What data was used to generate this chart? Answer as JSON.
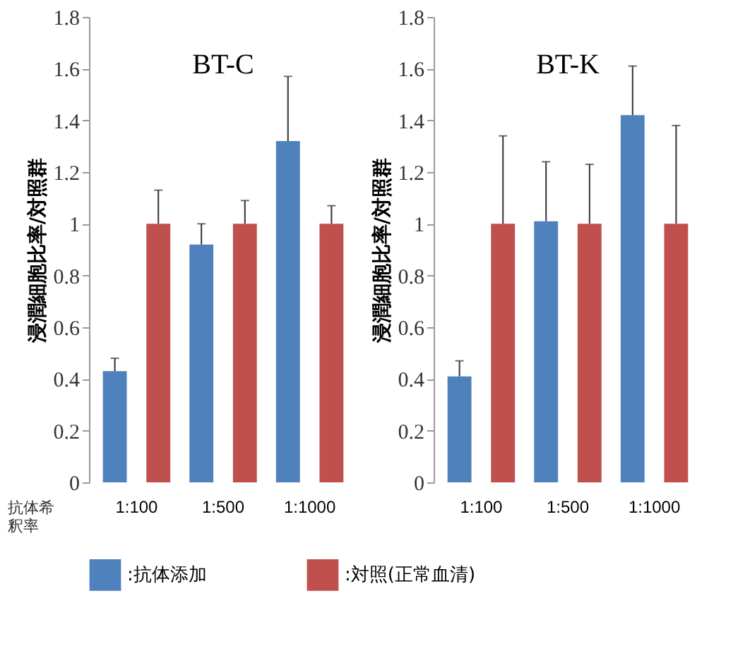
{
  "chart_data": [
    {
      "type": "bar",
      "title": "BT-C",
      "ylabel": "浸潤細胞比率/対照群",
      "xlabel": "抗体希釈率",
      "categories": [
        "1:100",
        "1:500",
        "1:1000"
      ],
      "ylim": [
        0,
        1.8
      ],
      "yticks": [
        0,
        0.2,
        0.4,
        0.6,
        0.8,
        1,
        1.2,
        1.4,
        1.6,
        1.8
      ],
      "grid": false,
      "legend": "bottom",
      "series": [
        {
          "name": ":抗体添加",
          "color": "#4f81bd",
          "values": [
            0.43,
            0.92,
            1.32
          ],
          "errors": [
            [
              0.43,
              0.48
            ],
            [
              0.92,
              1.0
            ],
            [
              1.32,
              1.57
            ]
          ]
        },
        {
          "name": ":対照(正常血清)",
          "color": "#c0504d",
          "values": [
            1.0,
            1.0,
            1.0
          ],
          "errors": [
            [
              1.0,
              1.13
            ],
            [
              1.0,
              1.09
            ],
            [
              1.0,
              1.07
            ]
          ]
        }
      ]
    },
    {
      "type": "bar",
      "title": "BT-K",
      "ylabel": "浸潤細胞比率/対照群",
      "categories": [
        "1:100",
        "1:500",
        "1:1000"
      ],
      "ylim": [
        0,
        1.8
      ],
      "yticks": [
        0,
        0.2,
        0.4,
        0.6,
        0.8,
        1,
        1.2,
        1.4,
        1.6,
        1.8
      ],
      "grid": false,
      "legend": "bottom",
      "series": [
        {
          "name": ":抗体添加",
          "color": "#4f81bd",
          "values": [
            0.41,
            1.01,
            1.42
          ],
          "errors": [
            [
              0.41,
              0.47
            ],
            [
              1.01,
              1.24
            ],
            [
              1.42,
              1.61
            ]
          ]
        },
        {
          "name": ":対照(正常血清)",
          "color": "#c0504d",
          "values": [
            1.0,
            1.0,
            1.0
          ],
          "errors": [
            [
              1.0,
              1.34
            ],
            [
              1.0,
              1.23
            ],
            [
              1.0,
              1.38
            ]
          ]
        }
      ]
    }
  ]
}
